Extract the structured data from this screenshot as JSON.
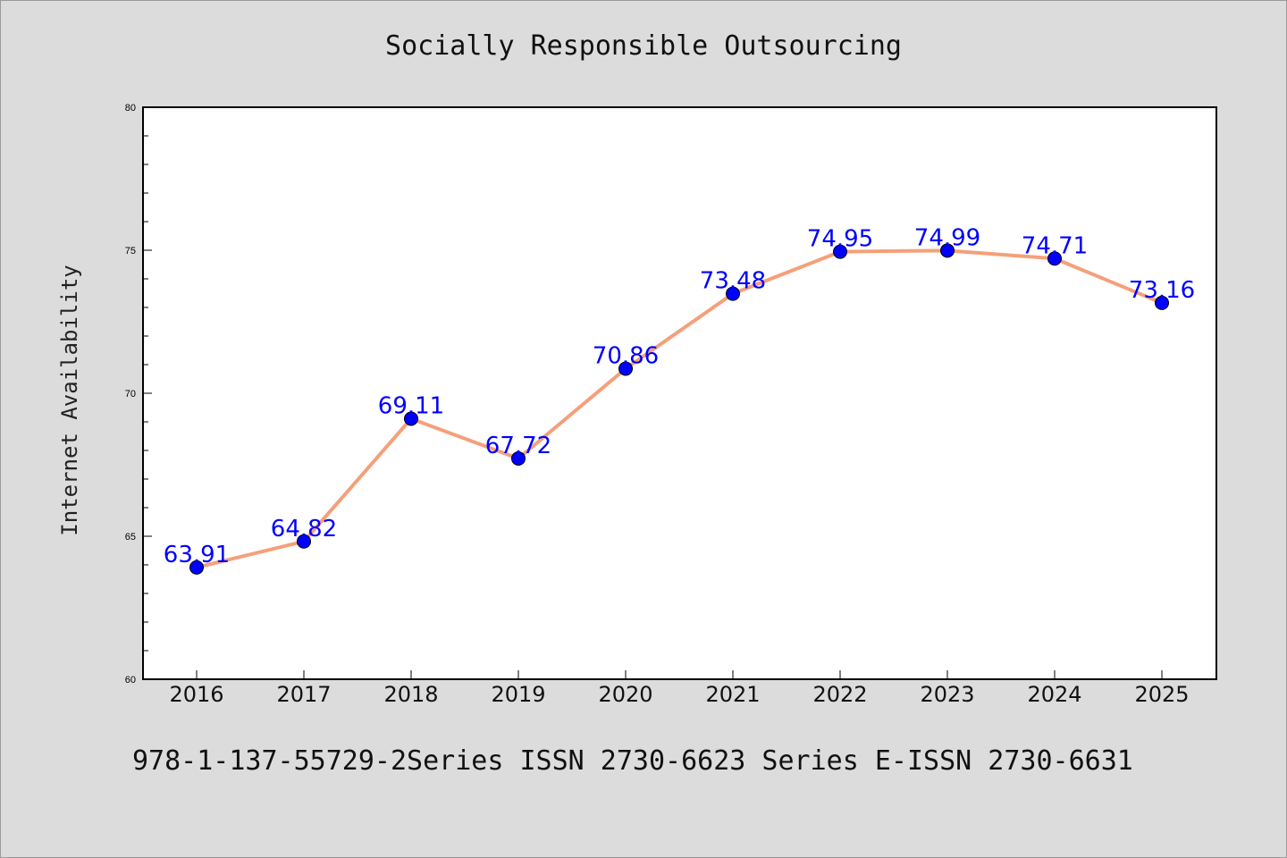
{
  "chart_data": {
    "type": "line",
    "title": "Socially Responsible Outsourcing",
    "ylabel": "Internet Availability",
    "xlabel": "",
    "categories": [
      "2016",
      "2017",
      "2018",
      "2019",
      "2020",
      "2021",
      "2022",
      "2023",
      "2024",
      "2025"
    ],
    "values": [
      63.91,
      64.82,
      69.11,
      67.72,
      70.86,
      73.48,
      74.95,
      74.99,
      74.71,
      73.16
    ],
    "data_labels": [
      "63.91",
      "64.82",
      "69.11",
      "67.72",
      "70.86",
      "73.48",
      "74.95",
      "74.99",
      "74.71",
      "73.16"
    ],
    "ylim": [
      60,
      80
    ],
    "yticks": [
      60,
      65,
      70,
      75,
      80
    ],
    "ytick_labels": [
      "60",
      "65",
      "70",
      "75",
      "80"
    ],
    "grid": false,
    "line_color": "#f4a07a",
    "marker_color": "#0000ff",
    "label_color": "#0000ff"
  },
  "footnote": "978-1-137-55729-2Series ISSN 2730-6623 Series E-ISSN 2730-6631"
}
